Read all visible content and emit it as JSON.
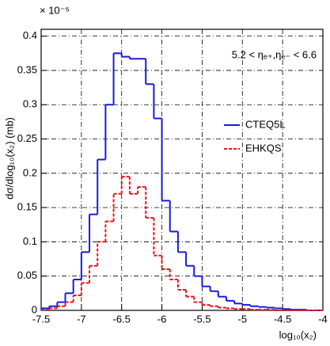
{
  "chart_data": {
    "type": "histogram",
    "xlabel": "log₁₀(x₂)",
    "ylabel": "dσ/dlog₁₀(x₂) (mb)",
    "y_multiplier": "× 10⁻⁵",
    "annotation": "5.2 < ηₑ₊,ηₑ₋ < 6.6",
    "bins": [
      -7.5,
      -7.4,
      -7.3,
      -7.2,
      -7.1,
      -7.0,
      -6.9,
      -6.8,
      -6.7,
      -6.6,
      -6.5,
      -6.4,
      -6.3,
      -6.2,
      -6.1,
      -6.0,
      -5.9,
      -5.8,
      -5.7,
      -5.6,
      -5.5,
      -5.4,
      -5.3,
      -5.2,
      -5.1,
      -5.0,
      -4.9,
      -4.8,
      -4.7,
      -4.6,
      -4.5,
      -4.4,
      -4.3,
      -4.2,
      -4.1,
      -4.0
    ],
    "series": [
      {
        "name": "CTEQ5L",
        "color": "#1a1adc",
        "style": "solid",
        "values": [
          0.003,
          0.006,
          0.012,
          0.025,
          0.045,
          0.085,
          0.14,
          0.22,
          0.3,
          0.375,
          0.37,
          0.367,
          0.367,
          0.33,
          0.28,
          0.16,
          0.115,
          0.085,
          0.065,
          0.05,
          0.035,
          0.028,
          0.02,
          0.014,
          0.01,
          0.008,
          0.006,
          0.005,
          0.004,
          0.003,
          0.002,
          0.001,
          0.001,
          0,
          0
        ]
      },
      {
        "name": "EHKQS",
        "color": "#e8141e",
        "style": "dashed",
        "values": [
          0.001,
          0.003,
          0.006,
          0.012,
          0.022,
          0.04,
          0.065,
          0.1,
          0.13,
          0.17,
          0.195,
          0.17,
          0.18,
          0.135,
          0.08,
          0.06,
          0.045,
          0.03,
          0.02,
          0.012,
          0.008,
          0.006,
          0.004,
          0.003,
          0.002,
          0.002,
          0.001,
          0.001,
          0.001,
          0,
          0,
          0,
          0,
          0,
          0
        ]
      }
    ],
    "xlim": [
      -7.5,
      -4.0
    ],
    "xticks": [
      -7.5,
      -7,
      -6.5,
      -6,
      -5.5,
      -5,
      -4.5,
      -4
    ],
    "ylim": [
      0,
      0.41
    ],
    "yticks": [
      0,
      0.05,
      0.1,
      0.15,
      0.2,
      0.25,
      0.3,
      0.35,
      0.4
    ],
    "grid": true
  }
}
